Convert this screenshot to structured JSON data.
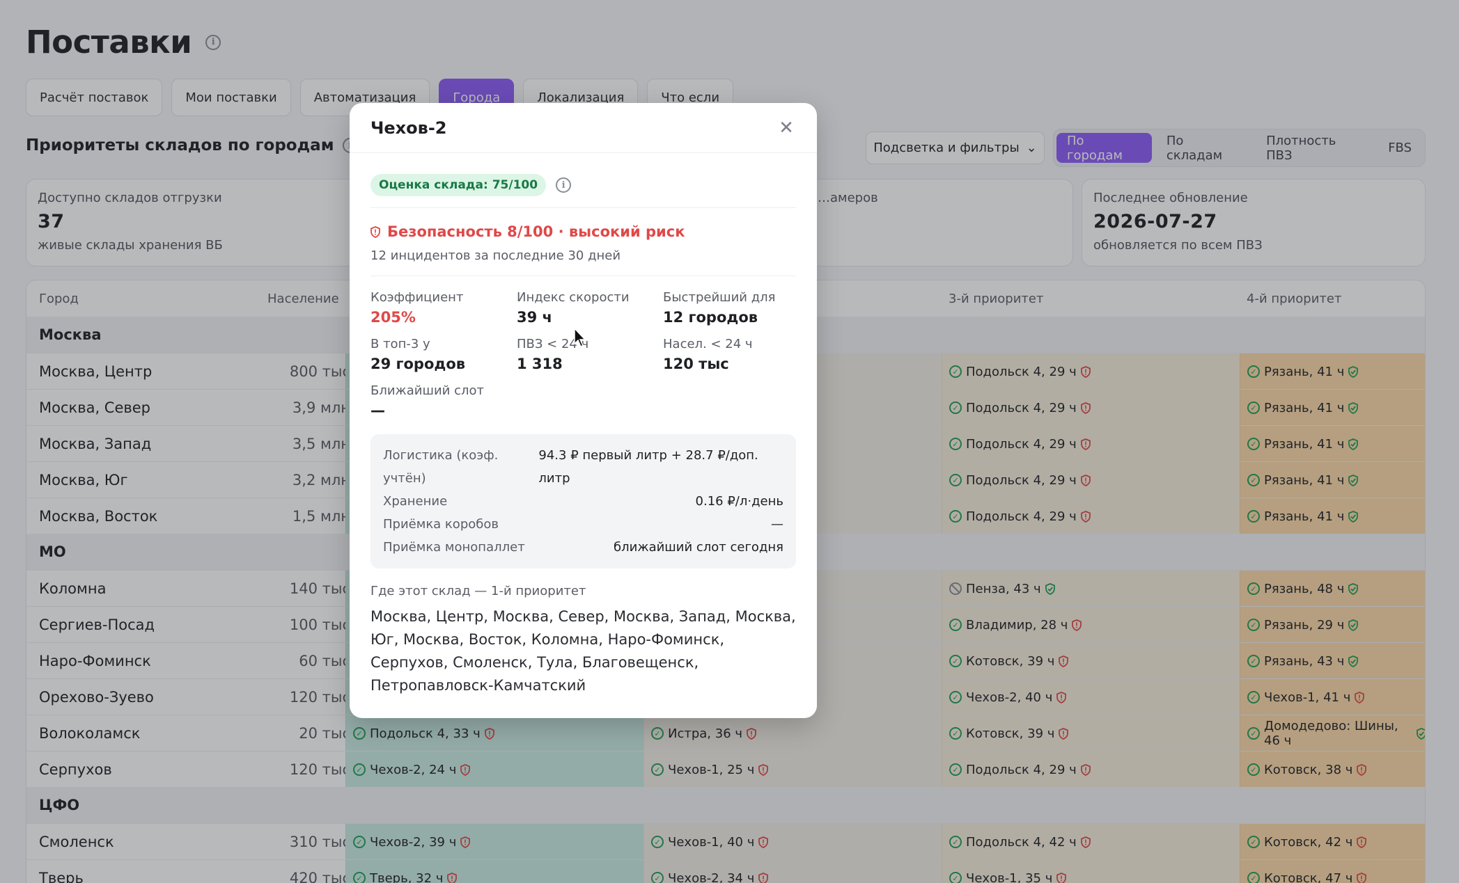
{
  "page": {
    "title": "Поставки"
  },
  "tabs": [
    "Расчёт поставок",
    "Мои поставки",
    "Автоматизация",
    "Города",
    "Локализация",
    "Что если"
  ],
  "active_tab": "Города",
  "section": {
    "title": "Приоритеты складов по городам"
  },
  "filter_button": "Подсветка и фильтры",
  "view_modes": [
    "По городам",
    "По складам",
    "Плотность ПВЗ",
    "FBS"
  ],
  "stats": [
    {
      "label": "Доступно складов отгрузки",
      "value": "37",
      "sub": "живые склады хранения ВБ"
    },
    {
      "label": "…амеров",
      "value": "",
      "sub": ""
    },
    {
      "label": "Последнее обновление",
      "value": "2026-07-27",
      "sub": "обновляется по всем ПВЗ"
    }
  ],
  "table": {
    "headers": {
      "city": "Город",
      "population": "Население",
      "p3": "3-й приоритет",
      "p4": "4-й приоритет"
    },
    "groups": [
      {
        "name": "Москва",
        "rows": [
          {
            "city": "Москва, Центр",
            "pop": "800 тыс",
            "p3": "Подольск 4, 29 ч",
            "p4": "Рязань, 41 ч"
          },
          {
            "city": "Москва, Север",
            "pop": "3,9 млн",
            "p3": "Подольск 4, 29 ч",
            "p4": "Рязань, 41 ч"
          },
          {
            "city": "Москва, Запад",
            "pop": "3,5 млн",
            "p3": "Подольск 4, 29 ч",
            "p4": "Рязань, 41 ч"
          },
          {
            "city": "Москва, Юг",
            "pop": "3,2 млн",
            "p3": "Подольск 4, 29 ч",
            "p4": "Рязань, 41 ч"
          },
          {
            "city": "Москва, Восток",
            "pop": "1,5 млн",
            "p3": "Подольск 4, 29 ч",
            "p4": "Рязань, 41 ч"
          }
        ]
      },
      {
        "name": "МО",
        "rows": [
          {
            "city": "Коломна",
            "pop": "140 тыс",
            "p3": "Пенза, 43 ч",
            "p4": "Рязань, 48 ч"
          },
          {
            "city": "Сергиев-Посад",
            "pop": "100 тыс",
            "p3": "Владимир, 28 ч",
            "p4": "Рязань, 29 ч"
          },
          {
            "city": "Наро-Фоминск",
            "pop": "60 тыс",
            "p3": "Котовск, 39 ч",
            "p4": "Рязань, 43 ч"
          },
          {
            "city": "Орехово-Зуево",
            "pop": "120 тыс",
            "p3": "Чехов-2, 40 ч",
            "p4": "Чехов-1, 41 ч"
          },
          {
            "city": "Волоколамск",
            "pop": "20 тыс",
            "p1": "Подольск 4, 33 ч",
            "p2": "Истра, 36 ч",
            "p3": "Котовск, 39 ч",
            "p4": "Домодедово: Шины, 46 ч"
          },
          {
            "city": "Серпухов",
            "pop": "120 тыс",
            "p1": "Чехов-2, 24 ч",
            "p2": "Чехов-1, 25 ч",
            "p3": "Подольск 4, 29 ч",
            "p4": "Котовск, 38 ч"
          }
        ]
      },
      {
        "name": "ЦФО",
        "rows": [
          {
            "city": "Смоленск",
            "pop": "310 тыс",
            "p1": "Чехов-2, 39 ч",
            "p2": "Чехов-1, 40 ч",
            "p3": "Подольск 4, 42 ч",
            "p4": "Котовск, 42 ч"
          },
          {
            "city": "Тверь",
            "pop": "420 тыс",
            "p1": "Тверь, 32 ч",
            "p2": "Чехов-2, 34 ч",
            "p3": "Чехов-1, 35 ч",
            "p4": "Котовск, 47 ч"
          }
        ]
      }
    ]
  },
  "modal": {
    "title": "Чехов-2",
    "score_badge": "Оценка склада: 75/100",
    "risk": "Безопасность 8/100 · высокий риск",
    "risk_sub": "12 инцидентов за последние 30 дней",
    "metrics": [
      {
        "label": "Коэффициент",
        "value": "205%"
      },
      {
        "label": "Индекс скорости",
        "value": "39 ч"
      },
      {
        "label": "Быстрейший для",
        "value": "12 городов"
      },
      {
        "label": "В топ-3 у",
        "value": "29 городов"
      },
      {
        "label": "ПВЗ < 24 ч",
        "value": "1 318"
      },
      {
        "label": "Насел. < 24 ч",
        "value": "120 тыс"
      },
      {
        "label": "Ближайший слот",
        "value": "—"
      }
    ],
    "costs": [
      {
        "k": "Логистика (коэф. учтён)",
        "v": "94.3 ₽ первый литр + 28.7 ₽/доп. литр"
      },
      {
        "k": "Хранение",
        "v": "0.16 ₽/л·день"
      },
      {
        "k": "Приёмка коробов",
        "v": "—"
      },
      {
        "k": "Приёмка монопаллет",
        "v": "ближайший слот сегодня"
      }
    ],
    "where_label": "Где этот склад — 1-й приоритет",
    "where_text": "Москва, Центр, Москва, Север, Москва, Запад, Москва, Юг, Москва, Восток, Коломна, Наро-Фоминск, Серпухов, Смоленск, Тула, Благовещенск, Петропавловск-Камчатский"
  },
  "colors": {
    "accent": "#8b5cf6",
    "danger": "#e04848",
    "ok": "#1f9d55"
  }
}
